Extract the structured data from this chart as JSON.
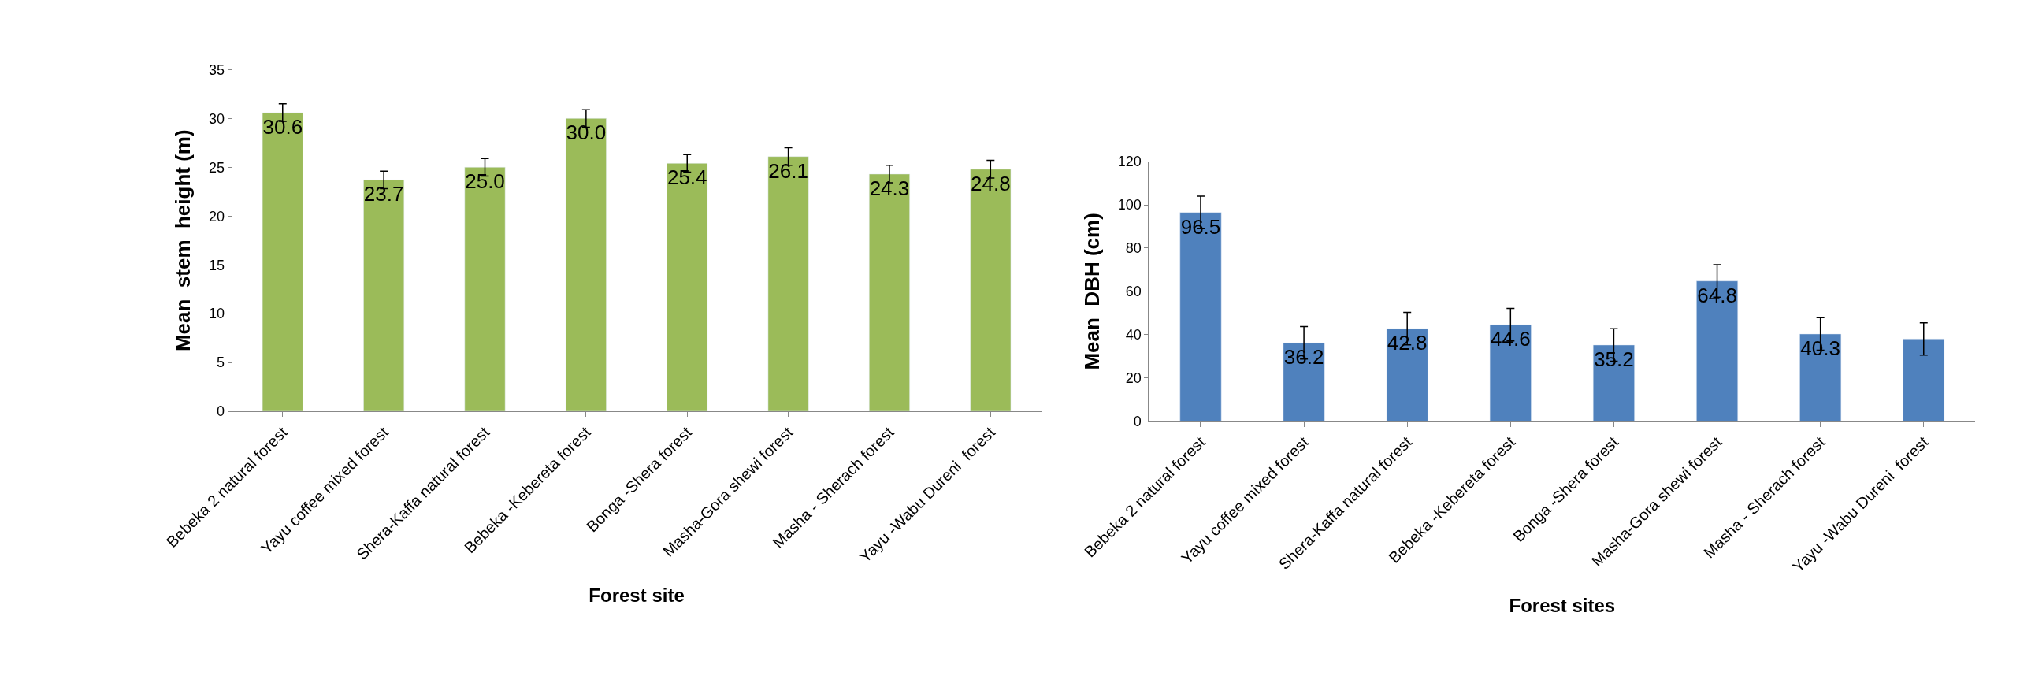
{
  "chart_data": [
    {
      "type": "bar",
      "ylabel": "Mean  stem  height (m)",
      "xlabel": "Forest site",
      "categories": [
        "Bebeka 2 natural forest",
        "Yayu coffee mixed forest",
        "Shera-Kaffa natural forest",
        "Bebeka -Kebereta forest",
        "Bonga -Shera forest",
        "Masha-Gora shewi forest",
        "Masha - Sherach forest",
        "Yayu -Wabu Dureni  forest"
      ],
      "series": [
        {
          "color": "#9bbb59",
          "values": [
            30.6,
            23.7,
            25.0,
            30.0,
            25.4,
            26.1,
            24.3,
            24.8
          ],
          "errors": [
            0.9,
            0.9,
            0.9,
            0.9,
            0.9,
            0.9,
            0.9,
            0.9
          ],
          "value_labels": [
            "30.6",
            "23.7",
            "25.0",
            "30.0",
            "25.4",
            "26.1",
            "24.3",
            "24.8"
          ]
        }
      ],
      "ylim": [
        0,
        35
      ],
      "yticks": [
        0,
        5,
        10,
        15,
        20,
        25,
        30,
        35
      ]
    },
    {
      "type": "bar",
      "ylabel": "Mean  DBH (cm)",
      "xlabel": "Forest sites",
      "categories": [
        "Bebeka 2 natural forest",
        "Yayu coffee mixed forest",
        "Shera-Kaffa natural forest",
        "Bebeka -Kebereta forest",
        "Bonga -Shera forest",
        "Masha-Gora shewi forest",
        "Masha - Sherach forest",
        "Yayu -Wabu Dureni  forest"
      ],
      "series": [
        {
          "color": "#4f81bd",
          "values": [
            96.5,
            36.2,
            42.8,
            44.6,
            35.2,
            64.8,
            40.3,
            38
          ],
          "errors": [
            7.5,
            7.5,
            7.5,
            7.5,
            7.5,
            7.5,
            7.5,
            7.5
          ],
          "value_labels": [
            "96.5",
            "36.2",
            "42.8",
            "44.6",
            "35.2",
            "64.8",
            "40.3",
            null
          ]
        }
      ],
      "ylim": [
        0,
        120
      ],
      "yticks": [
        0,
        20,
        40,
        60,
        80,
        100,
        120
      ]
    }
  ]
}
